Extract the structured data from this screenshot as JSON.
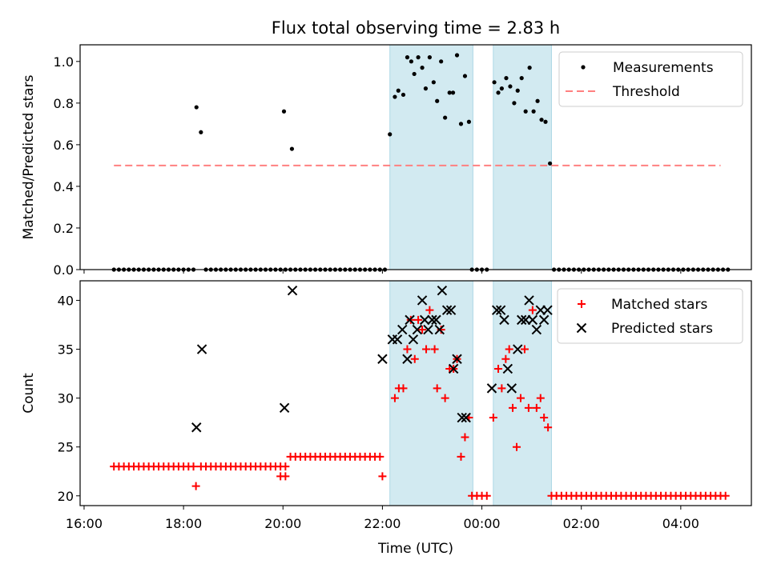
{
  "figure_title": "Flux total observing time = 2.83 h",
  "colors": {
    "shade": "#add8e6",
    "measurement": "#000000",
    "threshold": "#ff8080",
    "matched": "#ff0000",
    "predicted": "#000000"
  },
  "chart_data": [
    {
      "type": "scatter",
      "title": "Flux total observing time = 2.83 h",
      "xlabel": "",
      "ylabel": "Matched/Predicted stars",
      "x_units": "hours since 16:00 UTC",
      "xlim": [
        -0.08,
        13.42
      ],
      "ylim": [
        0.0,
        1.08
      ],
      "yticks": [
        0.0,
        0.2,
        0.4,
        0.6,
        0.8,
        1.0
      ],
      "ytick_labels": [
        "0.0",
        "0.2",
        "0.4",
        "0.6",
        "0.8",
        "1.0"
      ],
      "shaded_regions": [
        [
          6.15,
          7.82
        ],
        [
          8.23,
          9.4
        ]
      ],
      "threshold": {
        "name": "Threshold",
        "value": 0.5,
        "x_range": [
          0.6,
          12.8
        ]
      },
      "legend": {
        "placement": "top-right",
        "entries": [
          "Measurements",
          "Threshold"
        ]
      },
      "series": [
        {
          "name": "Measurements",
          "marker": "dot",
          "points": [
            [
              2.26,
              0.78
            ],
            [
              2.35,
              0.66
            ],
            [
              4.02,
              0.76
            ],
            [
              4.18,
              0.58
            ],
            [
              6.15,
              0.65
            ],
            [
              6.25,
              0.83
            ],
            [
              6.32,
              0.86
            ],
            [
              6.42,
              0.84
            ],
            [
              6.5,
              1.02
            ],
            [
              6.58,
              1.0
            ],
            [
              6.64,
              0.94
            ],
            [
              6.72,
              1.02
            ],
            [
              6.8,
              0.97
            ],
            [
              6.87,
              0.87
            ],
            [
              6.95,
              1.02
            ],
            [
              7.03,
              0.9
            ],
            [
              7.1,
              0.81
            ],
            [
              7.18,
              1.0
            ],
            [
              7.26,
              0.73
            ],
            [
              7.35,
              0.85
            ],
            [
              7.42,
              0.85
            ],
            [
              7.5,
              1.03
            ],
            [
              7.58,
              0.7
            ],
            [
              7.66,
              0.93
            ],
            [
              7.74,
              0.71
            ],
            [
              8.25,
              0.9
            ],
            [
              8.33,
              0.85
            ],
            [
              8.4,
              0.87
            ],
            [
              8.49,
              0.92
            ],
            [
              8.57,
              0.88
            ],
            [
              8.65,
              0.8
            ],
            [
              8.72,
              0.86
            ],
            [
              8.8,
              0.92
            ],
            [
              8.88,
              0.76
            ],
            [
              8.96,
              0.97
            ],
            [
              9.04,
              0.76
            ],
            [
              9.12,
              0.81
            ],
            [
              9.2,
              0.72
            ],
            [
              9.28,
              0.71
            ],
            [
              9.37,
              0.51
            ]
          ],
          "zero_ranges": [
            [
              0.6,
              2.2
            ],
            [
              2.45,
              3.95
            ],
            [
              4.05,
              4.15
            ],
            [
              4.25,
              6.05
            ],
            [
              7.8,
              8.15
            ],
            [
              9.45,
              12.95
            ]
          ]
        }
      ]
    },
    {
      "type": "scatter",
      "title": "",
      "xlabel": "Time (UTC)",
      "ylabel": "Count",
      "x_units": "hours since 16:00 UTC",
      "xlim": [
        -0.08,
        13.42
      ],
      "ylim": [
        19.0,
        42.0
      ],
      "yticks": [
        20,
        25,
        30,
        35,
        40
      ],
      "ytick_labels": [
        "20",
        "25",
        "30",
        "35",
        "40"
      ],
      "xticks": [
        0,
        2,
        4,
        6,
        8,
        10,
        12
      ],
      "xtick_labels": [
        "16:00",
        "18:00",
        "20:00",
        "22:00",
        "00:00",
        "02:00",
        "04:00"
      ],
      "shaded_regions": [
        [
          6.15,
          7.82
        ],
        [
          8.23,
          9.4
        ]
      ],
      "legend": {
        "placement": "top-right",
        "entries": [
          "Matched stars",
          "Predicted stars"
        ]
      },
      "series": [
        {
          "name": "Matched stars",
          "marker": "plus",
          "points": [
            [
              2.25,
              21
            ],
            [
              3.95,
              22
            ],
            [
              4.05,
              22
            ],
            [
              6.0,
              22
            ],
            [
              6.25,
              30
            ],
            [
              6.33,
              31
            ],
            [
              6.42,
              31
            ],
            [
              6.5,
              35
            ],
            [
              6.57,
              38
            ],
            [
              6.65,
              34
            ],
            [
              6.72,
              38
            ],
            [
              6.8,
              37
            ],
            [
              6.88,
              35
            ],
            [
              6.95,
              39
            ],
            [
              7.05,
              35
            ],
            [
              7.1,
              31
            ],
            [
              7.18,
              37
            ],
            [
              7.26,
              30
            ],
            [
              7.35,
              33
            ],
            [
              7.43,
              33
            ],
            [
              7.5,
              34
            ],
            [
              7.58,
              24
            ],
            [
              7.66,
              26
            ],
            [
              7.74,
              28
            ],
            [
              8.23,
              28
            ],
            [
              8.33,
              33
            ],
            [
              8.4,
              31
            ],
            [
              8.48,
              34
            ],
            [
              8.55,
              35
            ],
            [
              8.62,
              29
            ],
            [
              8.7,
              25
            ],
            [
              8.78,
              30
            ],
            [
              8.86,
              35
            ],
            [
              8.94,
              29
            ],
            [
              9.02,
              39
            ],
            [
              9.1,
              29
            ],
            [
              9.18,
              30
            ],
            [
              9.25,
              28
            ],
            [
              9.33,
              27
            ]
          ],
          "constant_runs": [
            {
              "x_range": [
                0.6,
                2.2
              ],
              "value": 23
            },
            {
              "x_range": [
                2.35,
                4.05
              ],
              "value": 23
            },
            {
              "x_range": [
                4.15,
                6.0
              ],
              "value": 24
            },
            {
              "x_range": [
                7.8,
                8.15
              ],
              "value": 20
            },
            {
              "x_range": [
                9.4,
                12.9
              ],
              "value": 20
            }
          ]
        },
        {
          "name": "Predicted stars",
          "marker": "x",
          "points": [
            [
              2.26,
              27
            ],
            [
              2.37,
              35
            ],
            [
              4.03,
              29
            ],
            [
              4.19,
              41
            ],
            [
              6.0,
              34
            ],
            [
              6.2,
              36
            ],
            [
              6.3,
              36
            ],
            [
              6.4,
              37
            ],
            [
              6.5,
              34
            ],
            [
              6.55,
              38
            ],
            [
              6.62,
              36
            ],
            [
              6.7,
              37
            ],
            [
              6.8,
              40
            ],
            [
              6.85,
              38
            ],
            [
              6.92,
              37
            ],
            [
              7.0,
              38
            ],
            [
              7.08,
              38
            ],
            [
              7.15,
              37
            ],
            [
              7.2,
              41
            ],
            [
              7.3,
              39
            ],
            [
              7.38,
              39
            ],
            [
              7.43,
              33
            ],
            [
              7.5,
              34
            ],
            [
              7.6,
              28
            ],
            [
              7.68,
              28
            ],
            [
              8.2,
              31
            ],
            [
              8.3,
              39
            ],
            [
              8.38,
              39
            ],
            [
              8.45,
              38
            ],
            [
              8.52,
              33
            ],
            [
              8.6,
              31
            ],
            [
              8.72,
              35
            ],
            [
              8.8,
              38
            ],
            [
              8.88,
              38
            ],
            [
              8.95,
              40
            ],
            [
              9.02,
              38
            ],
            [
              9.1,
              37
            ],
            [
              9.18,
              39
            ],
            [
              9.25,
              38
            ],
            [
              9.32,
              39
            ]
          ]
        }
      ]
    }
  ]
}
